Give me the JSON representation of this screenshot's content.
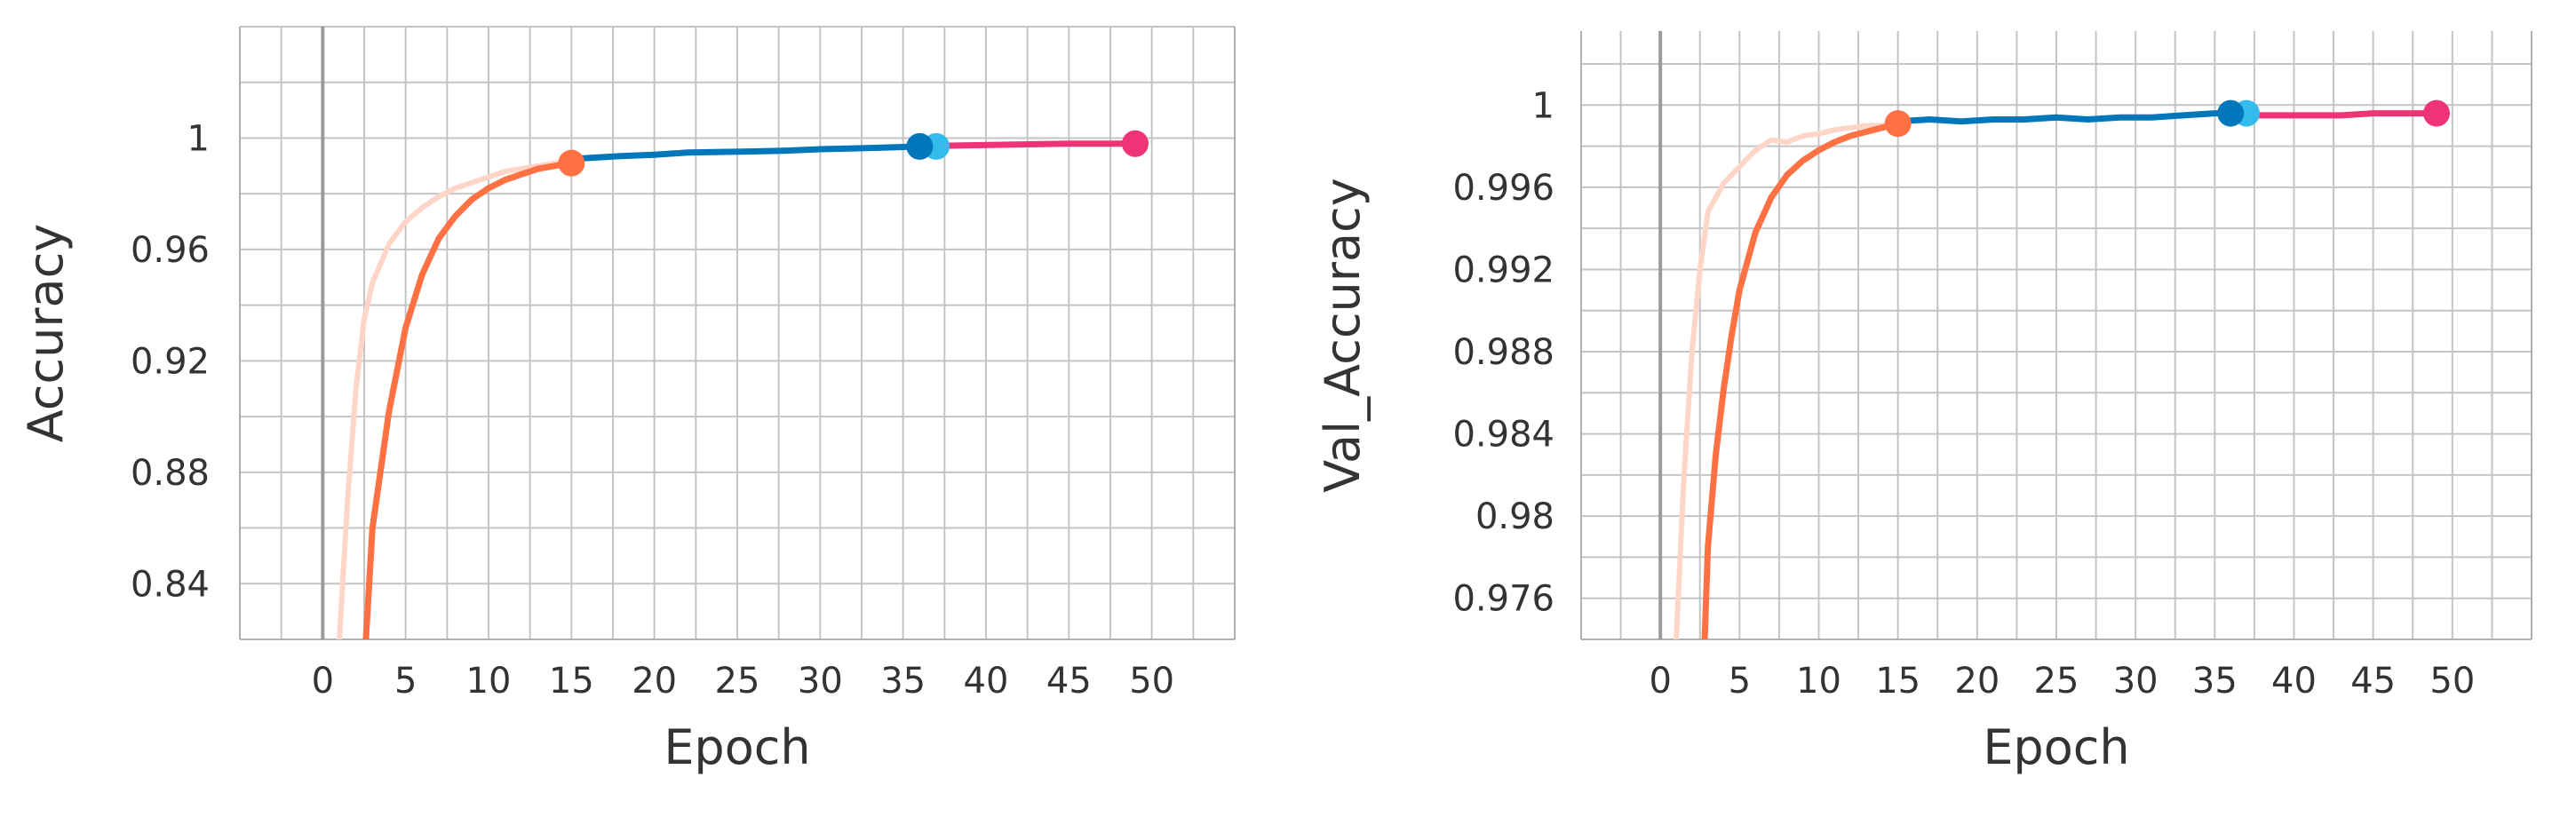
{
  "chart_data": [
    {
      "type": "line",
      "title": "",
      "xlabel": "Epoch",
      "ylabel": "Accuracy",
      "xlim": [
        -5,
        55
      ],
      "ylim": [
        0.82,
        1.04
      ],
      "xticks": [
        0,
        5,
        10,
        15,
        20,
        25,
        30,
        35,
        40,
        45,
        50
      ],
      "xtick_labels": [
        "0",
        "5",
        "10",
        "15",
        "20",
        "25",
        "30",
        "35",
        "40",
        "45",
        "50"
      ],
      "yticks": [
        0.84,
        0.88,
        0.92,
        0.96,
        1.0
      ],
      "ytick_labels": [
        "0.84",
        "0.88",
        "0.92",
        "0.96",
        "1"
      ],
      "grid": true,
      "series": [
        {
          "color": "#ffd5c8",
          "x": [
            1.0,
            1.5,
            2,
            2.5,
            3,
            4,
            5,
            6,
            7,
            8,
            9,
            10,
            11,
            12,
            13,
            14,
            15
          ],
          "y": [
            0.82,
            0.87,
            0.91,
            0.935,
            0.948,
            0.962,
            0.97,
            0.975,
            0.979,
            0.982,
            0.984,
            0.986,
            0.988,
            0.989,
            0.99,
            0.991,
            0.991
          ]
        },
        {
          "color": "#ff7043",
          "x": [
            2.6,
            3,
            4,
            5,
            6,
            7,
            8,
            9,
            10,
            11,
            12,
            13,
            14,
            15
          ],
          "y": [
            0.82,
            0.86,
            0.902,
            0.932,
            0.951,
            0.964,
            0.972,
            0.978,
            0.982,
            0.985,
            0.987,
            0.989,
            0.99,
            0.991
          ]
        },
        {
          "color": "#0077bb",
          "x": [
            15,
            18,
            20,
            22,
            24,
            26,
            28,
            30,
            32,
            34,
            36
          ],
          "y": [
            0.9925,
            0.9935,
            0.994,
            0.9948,
            0.995,
            0.9952,
            0.9955,
            0.996,
            0.9963,
            0.9966,
            0.997
          ]
        },
        {
          "color": "#ee3377",
          "x": [
            37,
            39,
            41,
            43,
            45,
            47,
            49
          ],
          "y": [
            0.9972,
            0.9974,
            0.9976,
            0.9978,
            0.998,
            0.998,
            0.998
          ]
        }
      ],
      "markers": [
        {
          "x": 15,
          "y": 0.991,
          "color": "#ff7043"
        },
        {
          "x": 37,
          "y": 0.997,
          "color": "#33bbee"
        },
        {
          "x": 36,
          "y": 0.997,
          "color": "#0077bb"
        },
        {
          "x": 49,
          "y": 0.998,
          "color": "#ee3377"
        }
      ]
    },
    {
      "type": "line",
      "title": "",
      "xlabel": "Epoch",
      "ylabel": "Val_Accuracy",
      "xlim": [
        -5,
        55
      ],
      "ylim": [
        0.974,
        1.0036
      ],
      "xticks": [
        0,
        5,
        10,
        15,
        20,
        25,
        30,
        35,
        40,
        45,
        50
      ],
      "xtick_labels": [
        "0",
        "5",
        "10",
        "15",
        "20",
        "25",
        "30",
        "35",
        "40",
        "45",
        "50"
      ],
      "yticks": [
        0.976,
        0.98,
        0.984,
        0.988,
        0.992,
        0.996,
        1.0
      ],
      "ytick_labels": [
        "0.976",
        "0.98",
        "0.984",
        "0.988",
        "0.992",
        "0.996",
        "1"
      ],
      "grid": true,
      "series": [
        {
          "color": "#ffd5c8",
          "x": [
            1.0,
            1.5,
            2,
            2.5,
            3,
            3.5,
            4,
            5,
            6,
            7,
            8,
            9,
            10,
            11,
            12,
            13,
            14,
            15
          ],
          "y": [
            0.974,
            0.982,
            0.988,
            0.992,
            0.9948,
            0.9955,
            0.9962,
            0.997,
            0.9978,
            0.9983,
            0.9982,
            0.9985,
            0.9986,
            0.9988,
            0.9989,
            0.999,
            0.999,
            0.9991
          ]
        },
        {
          "color": "#ff7043",
          "x": [
            2.8,
            3,
            3.5,
            4,
            4.5,
            5,
            6,
            7,
            8,
            9,
            10,
            11,
            12,
            13,
            14,
            15
          ],
          "y": [
            0.974,
            0.9785,
            0.983,
            0.9862,
            0.9888,
            0.991,
            0.9938,
            0.9955,
            0.9966,
            0.9973,
            0.9978,
            0.9982,
            0.9985,
            0.9987,
            0.9989,
            0.9991
          ]
        },
        {
          "color": "#0077bb",
          "x": [
            15,
            17,
            19,
            21,
            23,
            25,
            27,
            29,
            31,
            33,
            35,
            36
          ],
          "y": [
            0.9992,
            0.9993,
            0.9992,
            0.9993,
            0.9993,
            0.9994,
            0.9993,
            0.9994,
            0.9994,
            0.9995,
            0.9996,
            0.9996
          ]
        },
        {
          "color": "#ee3377",
          "x": [
            37,
            39,
            41,
            43,
            45,
            47,
            49
          ],
          "y": [
            0.9995,
            0.9995,
            0.9995,
            0.9995,
            0.9996,
            0.9996,
            0.9996
          ]
        }
      ],
      "markers": [
        {
          "x": 15,
          "y": 0.9991,
          "color": "#ff7043"
        },
        {
          "x": 37,
          "y": 0.9996,
          "color": "#33bbee"
        },
        {
          "x": 36,
          "y": 0.9996,
          "color": "#0077bb"
        },
        {
          "x": 49,
          "y": 0.9996,
          "color": "#ee3377"
        }
      ]
    }
  ]
}
